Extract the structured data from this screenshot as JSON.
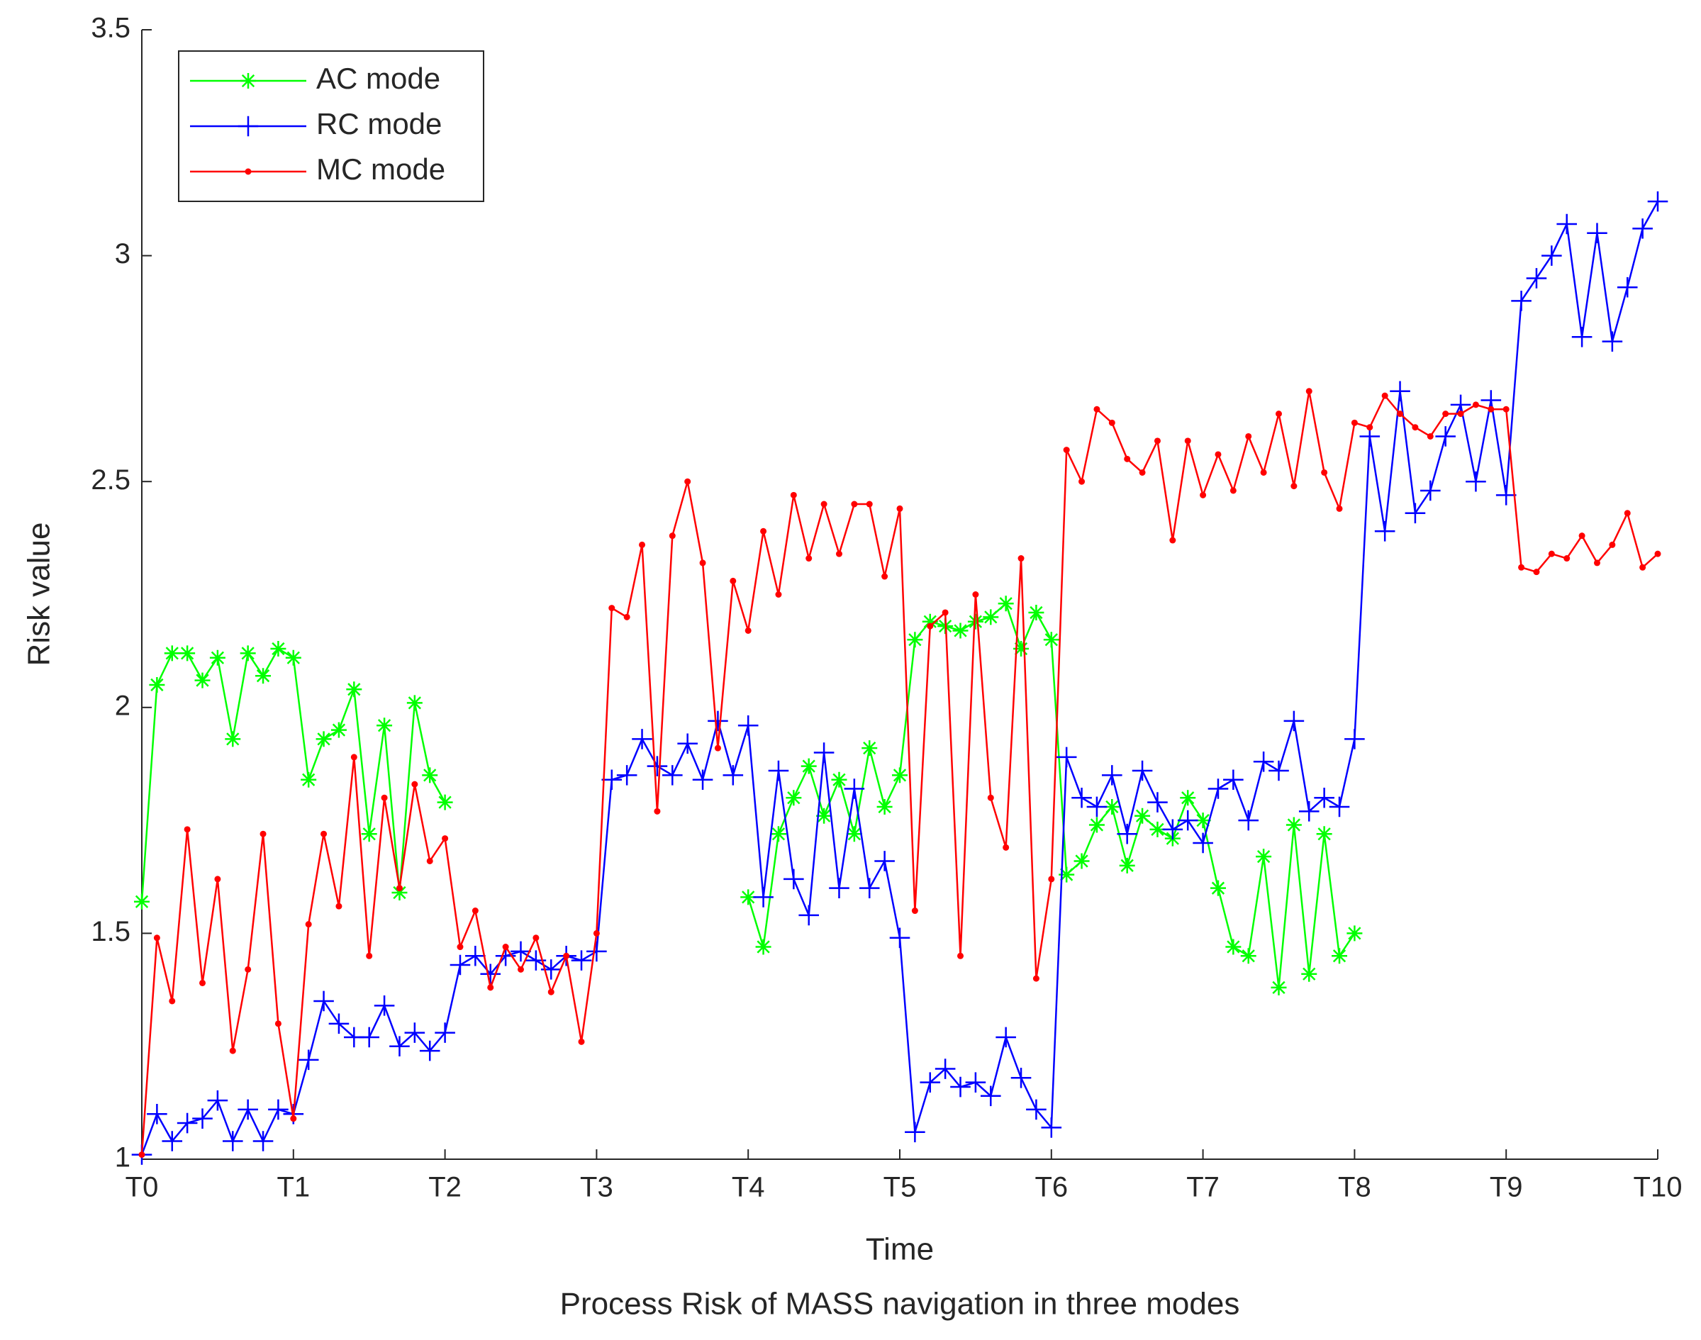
{
  "chart_data": {
    "type": "line",
    "title": "Process Risk of MASS navigation in three modes",
    "xlabel": "Time",
    "ylabel": "Risk value",
    "x": [
      0,
      0.1,
      0.2,
      0.3,
      0.4,
      0.5,
      0.6,
      0.7,
      0.8,
      0.9,
      1,
      1.1,
      1.2,
      1.3,
      1.4,
      1.5,
      1.6,
      1.7,
      1.8,
      1.9,
      2,
      2.1,
      2.2,
      2.3,
      2.4,
      2.5,
      2.6,
      2.7,
      2.8,
      2.9,
      3,
      3.1,
      3.2,
      3.3,
      3.4,
      3.5,
      3.6,
      3.7,
      3.8,
      3.9,
      4,
      4.1,
      4.2,
      4.3,
      4.4,
      4.5,
      4.6,
      4.7,
      4.8,
      4.9,
      5,
      5.1,
      5.2,
      5.3,
      5.4,
      5.5,
      5.6,
      5.7,
      5.8,
      5.9,
      6,
      6.1,
      6.2,
      6.3,
      6.4,
      6.5,
      6.6,
      6.7,
      6.8,
      6.9,
      7,
      7.1,
      7.2,
      7.3,
      7.4,
      7.5,
      7.6,
      7.7,
      7.8,
      7.9,
      8,
      8.1,
      8.2,
      8.3,
      8.4,
      8.5,
      8.6,
      8.7,
      8.8,
      8.9,
      9,
      9.1,
      9.2,
      9.3,
      9.4,
      9.5,
      9.6,
      9.7,
      9.8,
      9.9,
      10
    ],
    "series": [
      {
        "name": "AC mode",
        "color": "#00ff00",
        "marker": "star",
        "values": [
          1.57,
          2.05,
          2.12,
          2.12,
          2.06,
          2.11,
          1.93,
          2.12,
          2.07,
          2.13,
          2.11,
          1.84,
          1.93,
          1.95,
          2.04,
          1.72,
          1.96,
          1.59,
          2.01,
          1.85,
          1.79,
          null,
          null,
          null,
          null,
          null,
          null,
          null,
          null,
          null,
          null,
          null,
          null,
          null,
          null,
          null,
          null,
          null,
          null,
          null,
          1.58,
          1.47,
          1.72,
          1.8,
          1.87,
          1.76,
          1.84,
          1.72,
          1.91,
          1.78,
          1.85,
          2.15,
          2.19,
          2.18,
          2.17,
          2.19,
          2.2,
          2.23,
          2.13,
          2.21,
          2.15,
          1.63,
          1.66,
          1.74,
          1.78,
          1.65,
          1.76,
          1.73,
          1.71,
          1.8,
          1.75,
          1.6,
          1.47,
          1.45,
          1.67,
          1.38,
          1.74,
          1.41,
          1.72,
          1.45,
          1.5,
          null,
          null,
          null,
          null,
          null,
          null,
          null,
          null,
          null,
          null,
          null,
          null,
          null,
          null,
          null,
          null,
          null,
          null,
          null,
          null
        ]
      },
      {
        "name": "RC mode",
        "color": "#0000ff",
        "marker": "plus",
        "values": [
          1.01,
          1.1,
          1.04,
          1.08,
          1.09,
          1.13,
          1.04,
          1.11,
          1.04,
          1.11,
          1.1,
          1.22,
          1.35,
          1.3,
          1.27,
          1.27,
          1.34,
          1.25,
          1.28,
          1.24,
          1.28,
          1.43,
          1.45,
          1.41,
          1.45,
          1.46,
          1.44,
          1.42,
          1.45,
          1.44,
          1.46,
          1.84,
          1.85,
          1.93,
          1.87,
          1.85,
          1.92,
          1.84,
          1.97,
          1.85,
          1.96,
          1.58,
          1.86,
          1.62,
          1.54,
          1.9,
          1.6,
          1.82,
          1.6,
          1.66,
          1.49,
          1.06,
          1.17,
          1.2,
          1.16,
          1.17,
          1.14,
          1.27,
          1.18,
          1.11,
          1.07,
          1.89,
          1.8,
          1.78,
          1.85,
          1.72,
          1.86,
          1.79,
          1.73,
          1.75,
          1.7,
          1.82,
          1.84,
          1.75,
          1.88,
          1.86,
          1.97,
          1.77,
          1.8,
          1.78,
          1.93,
          2.6,
          2.39,
          2.7,
          2.43,
          2.48,
          2.6,
          2.67,
          2.5,
          2.68,
          2.47,
          2.9,
          2.95,
          3,
          3.07,
          2.82,
          3.05,
          2.81,
          2.93,
          3.06,
          3.12
        ]
      },
      {
        "name": "MC mode",
        "color": "#ff0000",
        "marker": "dot",
        "values": [
          1.01,
          1.49,
          1.35,
          1.73,
          1.39,
          1.62,
          1.24,
          1.42,
          1.72,
          1.3,
          1.09,
          1.52,
          1.72,
          1.56,
          1.89,
          1.45,
          1.8,
          1.6,
          1.83,
          1.66,
          1.71,
          1.47,
          1.55,
          1.38,
          1.47,
          1.42,
          1.49,
          1.37,
          1.45,
          1.26,
          1.5,
          2.22,
          2.2,
          2.36,
          1.77,
          2.38,
          2.5,
          2.32,
          1.91,
          2.28,
          2.17,
          2.39,
          2.25,
          2.47,
          2.33,
          2.45,
          2.34,
          2.45,
          2.45,
          2.29,
          2.44,
          1.55,
          2.18,
          2.21,
          1.45,
          2.25,
          1.8,
          1.69,
          2.33,
          1.4,
          1.62,
          2.57,
          2.5,
          2.66,
          2.63,
          2.55,
          2.52,
          2.59,
          2.37,
          2.59,
          2.47,
          2.56,
          2.48,
          2.6,
          2.52,
          2.65,
          2.49,
          2.7,
          2.52,
          2.44,
          2.63,
          2.62,
          2.69,
          2.65,
          2.62,
          2.6,
          2.65,
          2.65,
          2.67,
          2.66,
          2.66,
          2.31,
          2.3,
          2.34,
          2.33,
          2.38,
          2.32,
          2.36,
          2.43,
          2.31,
          2.34
        ]
      }
    ],
    "xlim": [
      0,
      10
    ],
    "xticks": [
      {
        "value": 0,
        "label": "T0"
      },
      {
        "value": 1,
        "label": "T1"
      },
      {
        "value": 2,
        "label": "T2"
      },
      {
        "value": 3,
        "label": "T3"
      },
      {
        "value": 4,
        "label": "T4"
      },
      {
        "value": 5,
        "label": "T5"
      },
      {
        "value": 6,
        "label": "T6"
      },
      {
        "value": 7,
        "label": "T7"
      },
      {
        "value": 8,
        "label": "T8"
      },
      {
        "value": 9,
        "label": "T9"
      },
      {
        "value": 10,
        "label": "T10"
      }
    ],
    "ylim": [
      1,
      3.5
    ],
    "yticks": [
      1,
      1.5,
      2,
      2.5,
      3,
      3.5
    ],
    "legend": "upper left",
    "grid": false
  }
}
